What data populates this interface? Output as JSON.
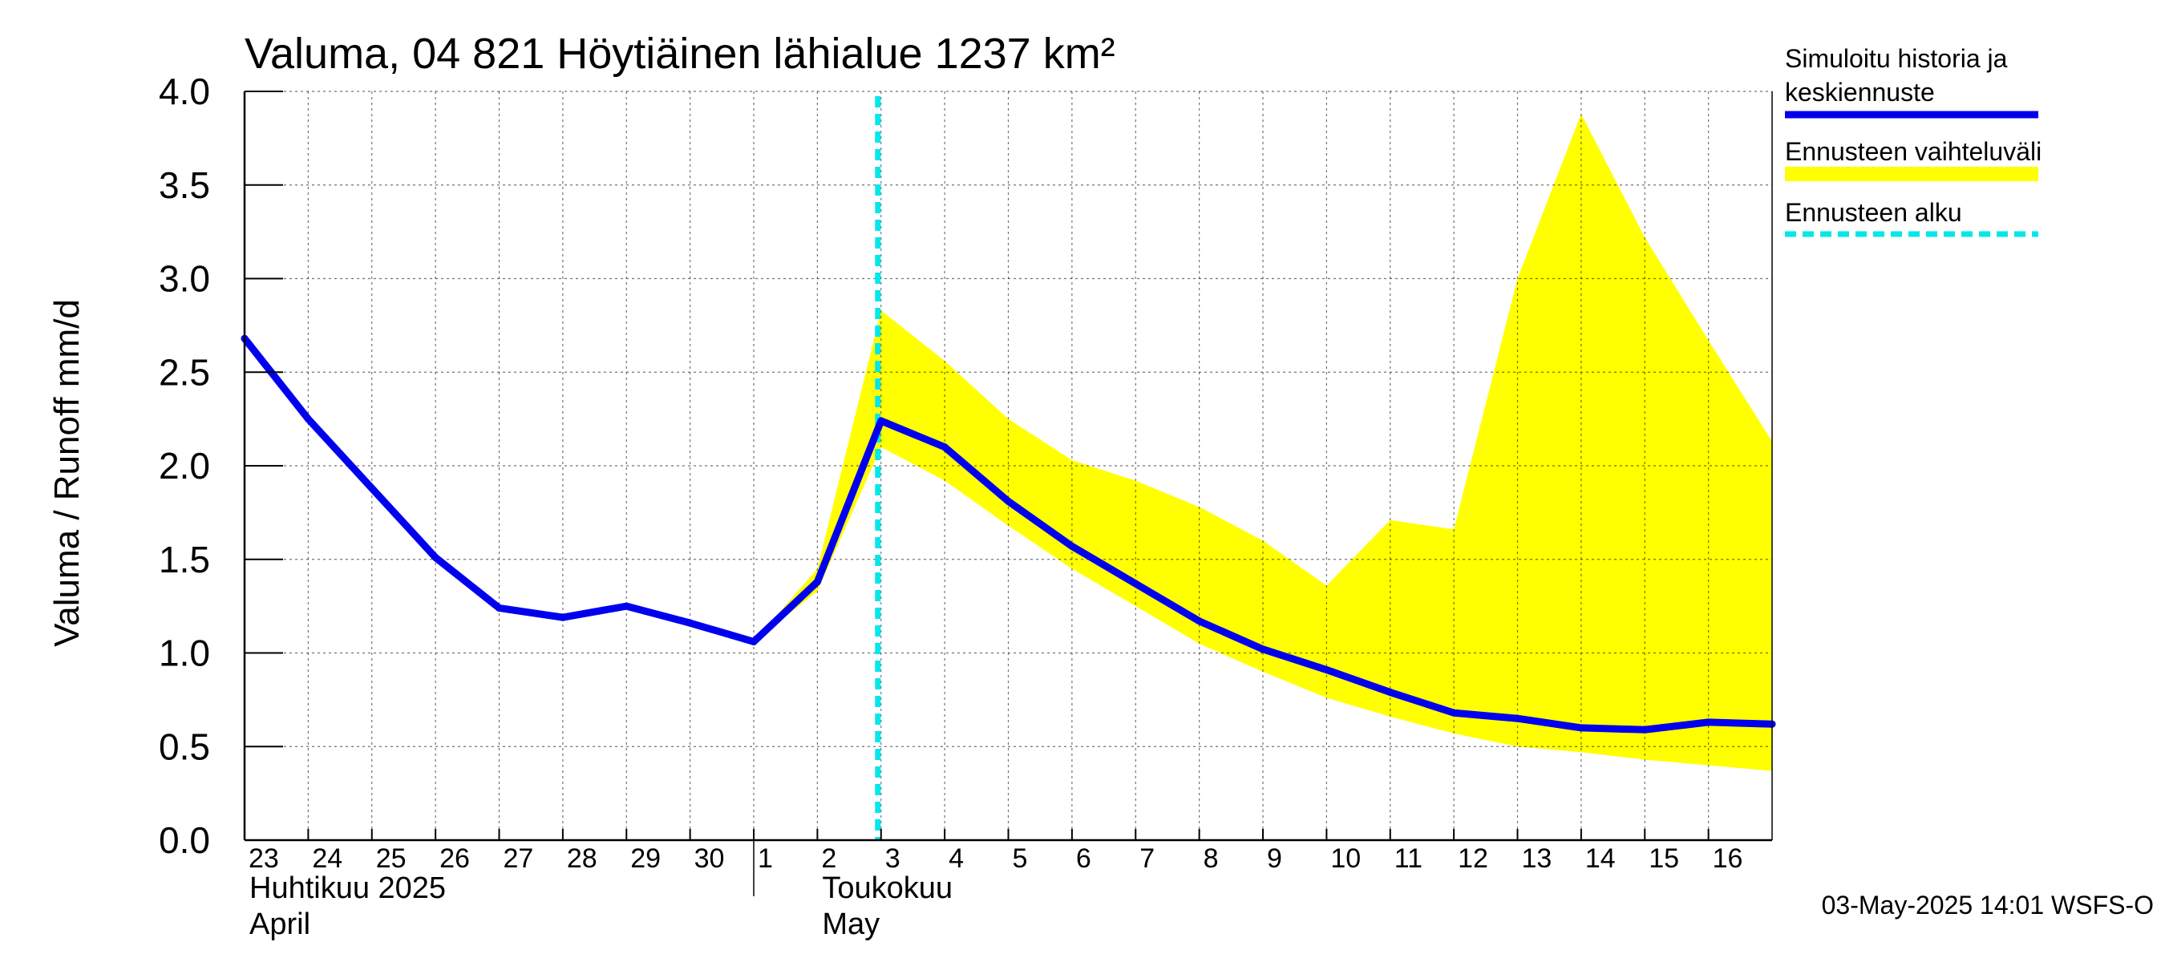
{
  "chart_data": {
    "type": "line",
    "title": "Valuma, 04 821 Höytiäinen lähialue 1237 km²",
    "ylabel": "Valuma / Runoff    mm/d",
    "ylim": [
      0,
      4.0
    ],
    "yticks": [
      "0.0",
      "0.5",
      "1.0",
      "1.5",
      "2.0",
      "2.5",
      "3.0",
      "3.5",
      "4.0"
    ],
    "xlim": [
      0,
      24
    ],
    "x_tick_labels": [
      "23",
      "24",
      "25",
      "26",
      "27",
      "28",
      "29",
      "30",
      "1",
      "2",
      "3",
      "4",
      "5",
      "6",
      "7",
      "8",
      "9",
      "10",
      "11",
      "12",
      "13",
      "14",
      "15",
      "16"
    ],
    "month_labels": [
      {
        "x": 0,
        "line1": "Huhtikuu  2025",
        "line2": "April"
      },
      {
        "x": 9,
        "line1": "Toukokuu",
        "line2": "May"
      }
    ],
    "month_boundary_x": 8,
    "forecast_start_x": 10,
    "series": [
      {
        "name": "Simuloitu historia ja keskiennuste",
        "color": "#0000ee",
        "x": [
          0,
          1,
          2,
          3,
          4,
          5,
          6,
          7,
          8,
          9,
          10,
          11,
          12,
          13,
          14,
          15,
          16,
          17,
          18,
          19,
          20,
          21,
          22,
          23,
          24
        ],
        "values": [
          2.68,
          2.25,
          1.88,
          1.51,
          1.24,
          1.19,
          1.25,
          1.16,
          1.06,
          1.38,
          2.24,
          2.1,
          1.81,
          1.57,
          1.37,
          1.17,
          1.02,
          0.91,
          0.79,
          0.68,
          0.65,
          0.6,
          0.59,
          0.63,
          0.62
        ]
      }
    ],
    "band": {
      "name": "Ennusteen vaihteluväli",
      "color": "#ffff00",
      "x": [
        8,
        9,
        10,
        11,
        12,
        13,
        14,
        15,
        16,
        17,
        18,
        19,
        20,
        21,
        22,
        23,
        24
      ],
      "upper": [
        1.06,
        1.45,
        2.83,
        2.56,
        2.25,
        2.03,
        1.92,
        1.78,
        1.6,
        1.36,
        1.71,
        1.66,
        3.0,
        3.88,
        3.22,
        2.67,
        2.13
      ],
      "lower": [
        1.06,
        1.33,
        2.1,
        1.92,
        1.68,
        1.45,
        1.25,
        1.05,
        0.9,
        0.76,
        0.66,
        0.57,
        0.5,
        0.47,
        0.43,
        0.4,
        0.37
      ]
    },
    "legend": [
      {
        "label_lines": [
          "Simuloitu historia ja",
          "keskiennuste"
        ],
        "style": "line",
        "color": "#0000ee"
      },
      {
        "label_lines": [
          "Ennusteen vaihteluväli"
        ],
        "style": "band",
        "color": "#ffff00"
      },
      {
        "label_lines": [
          "Ennusteen alku"
        ],
        "style": "dashed",
        "color": "#00e8e8"
      }
    ],
    "legend_position": "right",
    "grid": true,
    "footer": "03-May-2025 14:01 WSFS-O"
  }
}
